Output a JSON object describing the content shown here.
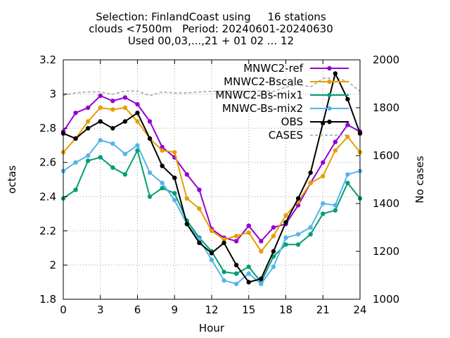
{
  "chart_data": {
    "type": "line",
    "title_lines": [
      "Selection: FinlandCoast using     16 stations",
      "clouds <7500m   Period: 20240601-20240630",
      "Used 00,03,...,21 + 01 02 ... 12"
    ],
    "xlabel": "Hour",
    "ylabel": "octas",
    "y2label": "No cases",
    "xlim": [
      0,
      24
    ],
    "ylim": [
      1.8,
      3.2
    ],
    "y2lim": [
      1000,
      2000
    ],
    "xticks": [
      "0",
      "3",
      "6",
      "9",
      "12",
      "15",
      "18",
      "21",
      "24"
    ],
    "yticks": [
      "1.8",
      "2",
      "2.2",
      "2.4",
      "2.6",
      "2.8",
      "3",
      "3.2"
    ],
    "y2ticks": [
      "1000",
      "1200",
      "1400",
      "1600",
      "1800",
      "2000"
    ],
    "grid": true,
    "legend_position": "top-right",
    "x": [
      0,
      1,
      2,
      3,
      4,
      5,
      6,
      7,
      8,
      9,
      10,
      11,
      12,
      13,
      14,
      15,
      16,
      17,
      18,
      19,
      20,
      21,
      22,
      23,
      24
    ],
    "series": [
      {
        "name": "MNWC2-ref",
        "color": "#9400d3",
        "axis": "y",
        "values": [
          2.78,
          2.89,
          2.92,
          2.99,
          2.96,
          2.98,
          2.94,
          2.84,
          2.69,
          2.63,
          2.53,
          2.44,
          2.21,
          2.16,
          2.14,
          2.23,
          2.14,
          2.22,
          2.24,
          2.35,
          2.48,
          2.6,
          2.72,
          2.82,
          2.78
        ]
      },
      {
        "name": "MNWC2-Bscale",
        "color": "#e69f00",
        "axis": "y",
        "values": [
          2.66,
          2.74,
          2.84,
          2.92,
          2.91,
          2.92,
          2.84,
          2.74,
          2.67,
          2.66,
          2.39,
          2.33,
          2.2,
          2.15,
          2.17,
          2.19,
          2.08,
          2.17,
          2.29,
          2.37,
          2.48,
          2.52,
          2.67,
          2.75,
          2.66
        ]
      },
      {
        "name": "MNWC2-Bs-mix1",
        "color": "#009e73",
        "axis": "y",
        "values": [
          2.39,
          2.44,
          2.61,
          2.63,
          2.57,
          2.53,
          2.67,
          2.4,
          2.45,
          2.42,
          2.26,
          2.16,
          2.08,
          1.96,
          1.95,
          1.99,
          1.9,
          2.05,
          2.12,
          2.12,
          2.18,
          2.3,
          2.32,
          2.48,
          2.39
        ]
      },
      {
        "name": "MNWC-Bs-mix2",
        "color": "#56b4e9",
        "axis": "y",
        "values": [
          2.55,
          2.6,
          2.64,
          2.73,
          2.71,
          2.65,
          2.7,
          2.54,
          2.48,
          2.38,
          2.24,
          2.15,
          2.03,
          1.91,
          1.89,
          1.95,
          1.89,
          1.99,
          2.16,
          2.18,
          2.22,
          2.36,
          2.35,
          2.53,
          2.55
        ]
      },
      {
        "name": "OBS",
        "color": "#000000",
        "axis": "y",
        "values": [
          2.77,
          2.74,
          2.8,
          2.84,
          2.8,
          2.84,
          2.89,
          2.74,
          2.58,
          2.51,
          2.24,
          2.13,
          2.07,
          2.13,
          2.0,
          1.9,
          1.92,
          2.08,
          2.25,
          2.39,
          2.54,
          2.83,
          3.12,
          2.97,
          2.77
        ]
      },
      {
        "name": "CASES",
        "color": "#a0a0a0",
        "axis": "y2",
        "dashed": true,
        "values": [
          1852,
          1862,
          1866,
          1866,
          1856,
          1870,
          1870,
          1850,
          1866,
          1862,
          1862,
          1866,
          1868,
          1870,
          1870,
          1868,
          1871,
          1868,
          1886,
          1898,
          1887,
          1922,
          1926,
          1910,
          1868
        ]
      }
    ]
  }
}
